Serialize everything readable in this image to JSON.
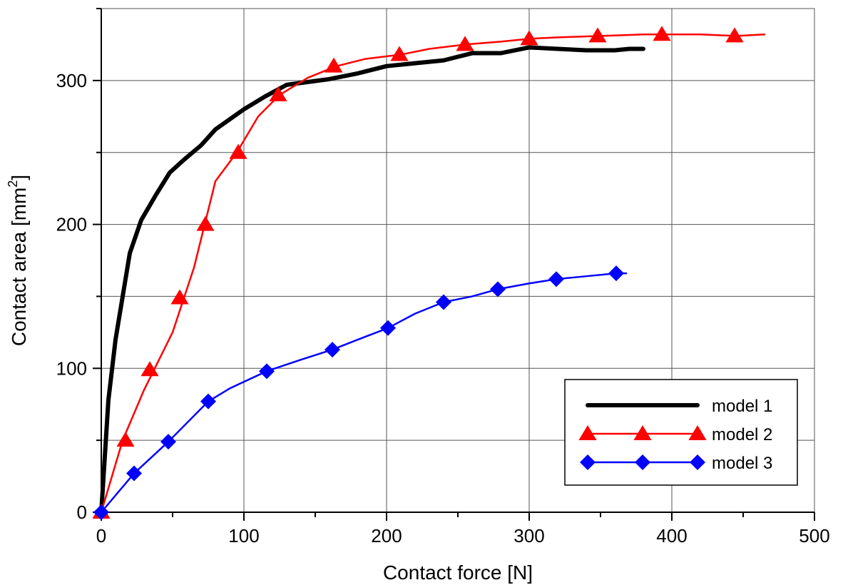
{
  "chart_data": {
    "type": "line",
    "xlabel": "Contact force [N]",
    "ylabel_main": "Contact area [mm",
    "ylabel_sup": "2",
    "ylabel_close": "]",
    "xlim": [
      0,
      500
    ],
    "ylim": [
      0,
      350
    ],
    "x_ticks": [
      0,
      100,
      200,
      300,
      400,
      500
    ],
    "y_ticks": [
      0,
      100,
      200,
      300
    ],
    "x_grid": [
      100,
      200,
      300,
      400
    ],
    "y_grid": [
      50,
      100,
      150,
      200,
      250,
      300
    ],
    "grid": true,
    "legend_position": "bottom-right",
    "series": [
      {
        "name": "model 1",
        "color": "#000000",
        "marker": "none",
        "line_width": 6,
        "x": [
          0,
          5,
          10,
          15,
          20,
          28,
          38,
          48,
          58,
          70,
          80,
          100,
          115,
          130,
          145,
          160,
          180,
          200,
          220,
          240,
          260,
          280,
          300,
          320,
          340,
          360,
          370,
          380
        ],
        "y": [
          0,
          78,
          120,
          150,
          180,
          203,
          220,
          236,
          245,
          255,
          266,
          280,
          289,
          297,
          299,
          301,
          305,
          310,
          312,
          314,
          319,
          319,
          323,
          322,
          321,
          321,
          322,
          322
        ]
      },
      {
        "name": "model 2",
        "color": "#ff0000",
        "marker": "triangle",
        "line_width": 2.5,
        "x": [
          0,
          15,
          30,
          50,
          65,
          80,
          95,
          110,
          125,
          145,
          165,
          185,
          210,
          230,
          255,
          280,
          300,
          320,
          350,
          380,
          400,
          420,
          445,
          465
        ],
        "y": [
          0,
          50,
          85,
          125,
          170,
          230,
          250,
          275,
          290,
          302,
          310,
          315,
          318,
          322,
          325,
          327,
          329,
          330,
          331,
          332,
          332,
          332,
          331,
          332
        ],
        "markers_x": [
          0,
          17,
          34,
          55,
          73,
          96,
          124,
          163,
          209,
          255,
          300,
          348,
          393,
          444
        ],
        "markers_y": [
          0,
          50,
          99,
          149,
          200,
          250,
          290,
          310,
          318,
          325,
          329,
          331,
          332,
          331
        ]
      },
      {
        "name": "model 3",
        "color": "#0000ff",
        "marker": "diamond",
        "line_width": 2.5,
        "x": [
          0,
          23,
          47,
          75,
          90,
          116,
          140,
          162,
          180,
          201,
          220,
          240,
          260,
          278,
          300,
          319,
          340,
          361,
          368
        ],
        "y": [
          0,
          27,
          49,
          77,
          86,
          98,
          106,
          113,
          120,
          128,
          138,
          146,
          150,
          155,
          159,
          162,
          164,
          166,
          166
        ],
        "markers_x": [
          0,
          23,
          47,
          75,
          116,
          162,
          201,
          240,
          278,
          319,
          361
        ],
        "markers_y": [
          0,
          27,
          49,
          77,
          98,
          113,
          128,
          146,
          155,
          162,
          166
        ]
      }
    ]
  }
}
